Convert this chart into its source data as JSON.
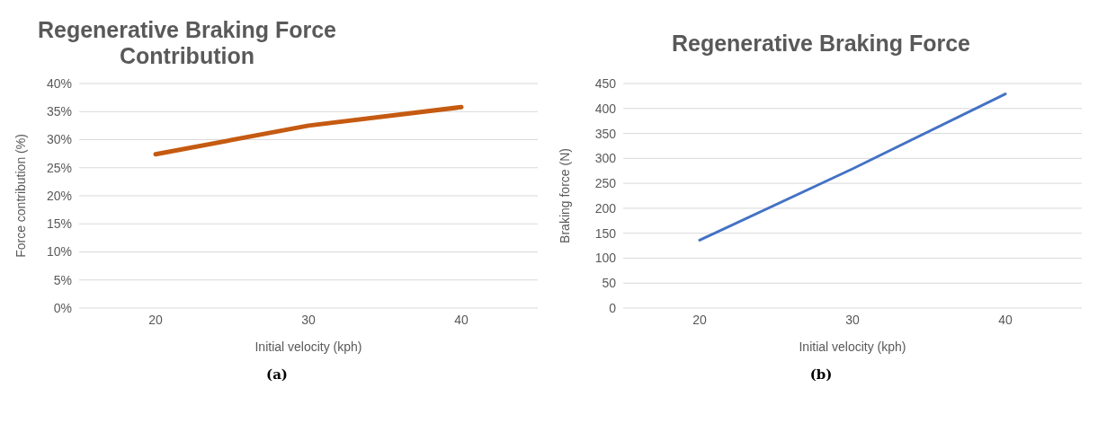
{
  "chart_data": [
    {
      "type": "line",
      "title": "Regenerative Braking Force Contribution",
      "xlabel": "Initial velocity (kph)",
      "ylabel": "Force contribution (%)",
      "categories": [
        "20",
        "30",
        "40"
      ],
      "series": [
        {
          "color": "#c55a11",
          "values": [
            27.4,
            32.5,
            35.8
          ]
        }
      ],
      "ylim": [
        0,
        40
      ],
      "yticks": [
        {
          "value": 0,
          "label": "0%"
        },
        {
          "value": 5,
          "label": "5%"
        },
        {
          "value": 10,
          "label": "10%"
        },
        {
          "value": 15,
          "label": "15%"
        },
        {
          "value": 20,
          "label": "20%"
        },
        {
          "value": 25,
          "label": "25%"
        },
        {
          "value": 30,
          "label": "30%"
        },
        {
          "value": 35,
          "label": "35%"
        },
        {
          "value": 40,
          "label": "40%"
        }
      ],
      "grid": "y",
      "marker": "none",
      "annotations": [
        "(a)"
      ]
    },
    {
      "type": "line",
      "title": "Regenerative Braking Force",
      "xlabel": "Initial velocity (kph)",
      "ylabel": "Braking force (N)",
      "categories": [
        "20",
        "30",
        "40"
      ],
      "series": [
        {
          "color": "#4472c4",
          "values": [
            136,
            279,
            429
          ]
        }
      ],
      "ylim": [
        0,
        450
      ],
      "yticks": [
        0,
        50,
        100,
        150,
        200,
        250,
        300,
        350,
        400,
        450
      ],
      "grid": "y",
      "marker": "none",
      "annotations": [
        "(b)"
      ]
    }
  ]
}
